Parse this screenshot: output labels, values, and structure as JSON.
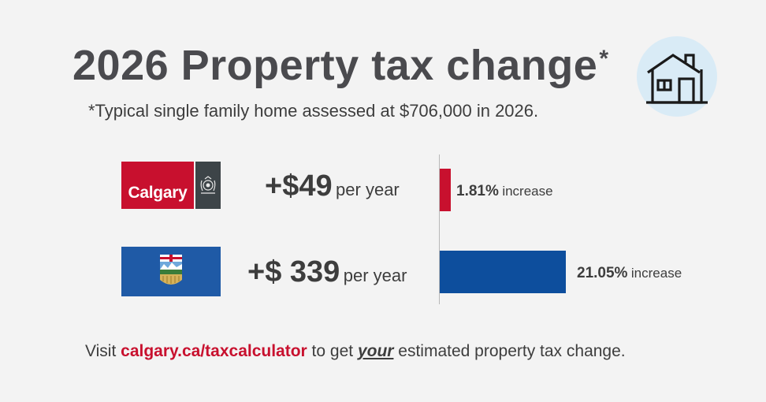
{
  "header": {
    "title": "2026 Property tax change",
    "title_star": "*",
    "subtitle": "*Typical single family home assessed at $706,000 in 2026."
  },
  "icons": {
    "house": "house-icon",
    "calgary_crest": "calgary-crest-icon",
    "alberta_shield": "alberta-shield-icon"
  },
  "calgary": {
    "logo_text": "Calgary",
    "amount": "+$49",
    "unit": "per year",
    "percent": "1.81%",
    "percent_word": "increase",
    "value": 1.81
  },
  "alberta": {
    "amount": "+$ 339",
    "unit": "per year",
    "percent": "21.05%",
    "percent_word": "increase",
    "value": 21.05
  },
  "footer": {
    "pre": "Visit ",
    "link": "calgary.ca/taxcalculator",
    "mid": " to get ",
    "emph": "your",
    "post": " estimated property tax change."
  },
  "colors": {
    "calgary_red": "#c8102e",
    "alberta_blue": "#0d4e9d",
    "background": "#f3f3f3",
    "house_circle": "#d9ebf6"
  }
}
